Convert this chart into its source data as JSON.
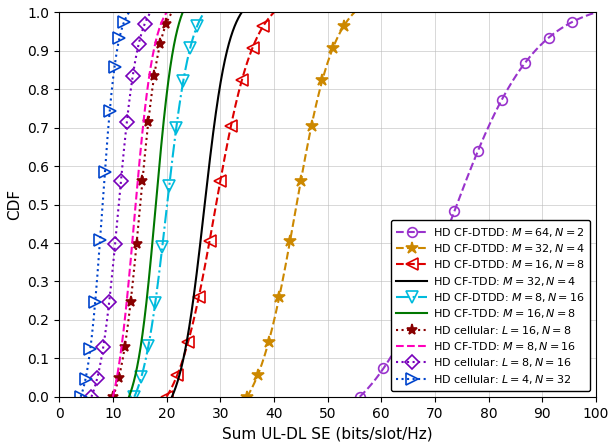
{
  "title": "",
  "xlabel": "Sum UL-DL SE (bits/slot/Hz)",
  "ylabel": "CDF",
  "xlim": [
    0,
    100
  ],
  "ylim": [
    0,
    1
  ],
  "xticks": [
    0,
    10,
    20,
    30,
    40,
    50,
    60,
    70,
    80,
    90,
    100
  ],
  "yticks": [
    0,
    0.1,
    0.2,
    0.3,
    0.4,
    0.5,
    0.6,
    0.7,
    0.8,
    0.9,
    1.0
  ],
  "curves": [
    {
      "label": "HD CF-DTDD: $M = 64, N = 2$",
      "color": "#9933CC",
      "linestyle": "--",
      "marker": "o",
      "markersize": 7,
      "markerfill": "none",
      "x_min": 56,
      "x_max": 100,
      "x_10": 62,
      "x_50": 73,
      "x_90": 90
    },
    {
      "label": "HD CF-DTDD: $M = 32, N = 4$",
      "color": "#CC8800",
      "linestyle": "--",
      "marker": "*",
      "markersize": 9,
      "markerfill": "full",
      "x_min": 35,
      "x_max": 55,
      "x_10": 38,
      "x_50": 44,
      "x_90": 52
    },
    {
      "label": "HD CF-DTDD: $M = 16, N = 8$",
      "color": "#DD0000",
      "linestyle": "--",
      "marker": "<",
      "markersize": 8,
      "markerfill": "none",
      "x_min": 20,
      "x_max": 40,
      "x_10": 23,
      "x_50": 29,
      "x_90": 37
    },
    {
      "label": "HD CF-TDD: $M = 32, N = 4$",
      "color": "#000000",
      "linestyle": "-",
      "marker": "None",
      "markersize": 0,
      "markerfill": "full",
      "x_min": 21,
      "x_max": 34,
      "x_10": 23,
      "x_50": 27,
      "x_90": 32
    },
    {
      "label": "HD CF-DTDD: $M = 8, N = 16$",
      "color": "#00BBDD",
      "linestyle": "-.",
      "marker": "v",
      "markersize": 8,
      "markerfill": "none",
      "x_min": 14,
      "x_max": 27,
      "x_10": 16,
      "x_50": 20,
      "x_90": 25
    },
    {
      "label": "HD CF-TDD: $M = 16, N = 8$",
      "color": "#007700",
      "linestyle": "-",
      "marker": "None",
      "markersize": 0,
      "markerfill": "full",
      "x_min": 13,
      "x_max": 23,
      "x_10": 15,
      "x_50": 18,
      "x_90": 22
    },
    {
      "label": "HD cellular: $L = 16, N = 8$",
      "color": "#880000",
      "linestyle": ":",
      "marker": "*",
      "markersize": 8,
      "markerfill": "full",
      "x_min": 10,
      "x_max": 21,
      "x_10": 12,
      "x_50": 15,
      "x_90": 19
    },
    {
      "label": "HD CF-TDD: $M = 8, N = 16$",
      "color": "#FF00BB",
      "linestyle": "--",
      "marker": "None",
      "markersize": 0,
      "markerfill": "full",
      "x_min": 10,
      "x_max": 20,
      "x_10": 11,
      "x_50": 14,
      "x_90": 18
    },
    {
      "label": "HD cellular: $L = 8, N = 16$",
      "color": "#7700BB",
      "linestyle": ":",
      "marker": "D",
      "markersize": 7,
      "markerfill": "none",
      "x_min": 6,
      "x_max": 17,
      "x_10": 8,
      "x_50": 11,
      "x_90": 15
    },
    {
      "label": "HD cellular: $L = 4, N = 32$",
      "color": "#0044CC",
      "linestyle": ":",
      "marker": ">",
      "markersize": 8,
      "markerfill": "none",
      "x_min": 4,
      "x_max": 13,
      "x_10": 5.5,
      "x_50": 8,
      "x_90": 11
    }
  ],
  "legend_loc": "lower right",
  "legend_fontsize": 8.0,
  "figsize": [
    6.16,
    4.48
  ],
  "dpi": 100
}
